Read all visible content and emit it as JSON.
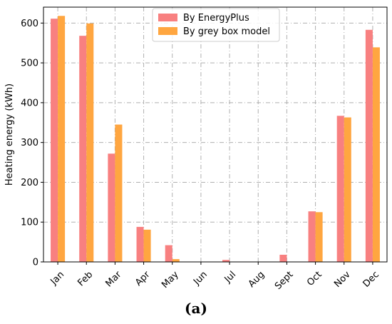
{
  "chart_data": {
    "type": "bar",
    "ylabel": "Heating energy (kWh)",
    "xlabel": "",
    "ylim": [
      0,
      640
    ],
    "yticks": [
      0,
      100,
      200,
      300,
      400,
      500,
      600
    ],
    "grid": true,
    "legend_position": "top-center",
    "categories": [
      "Jan",
      "Feb",
      "Mar",
      "Apr",
      "May",
      "Jun",
      "Jul",
      "Aug",
      "Sept",
      "Oct",
      "Nov",
      "Dec"
    ],
    "series": [
      {
        "name": "By EnergyPlus",
        "color": "#f88080",
        "values": [
          611,
          568,
          272,
          88,
          42,
          0,
          5,
          0,
          18,
          127,
          367,
          583
        ]
      },
      {
        "name": "By grey box model",
        "color": "#ffa640",
        "values": [
          618,
          599,
          345,
          81,
          7,
          0,
          0,
          0,
          0,
          125,
          363,
          539
        ]
      }
    ]
  },
  "caption": "(a)"
}
